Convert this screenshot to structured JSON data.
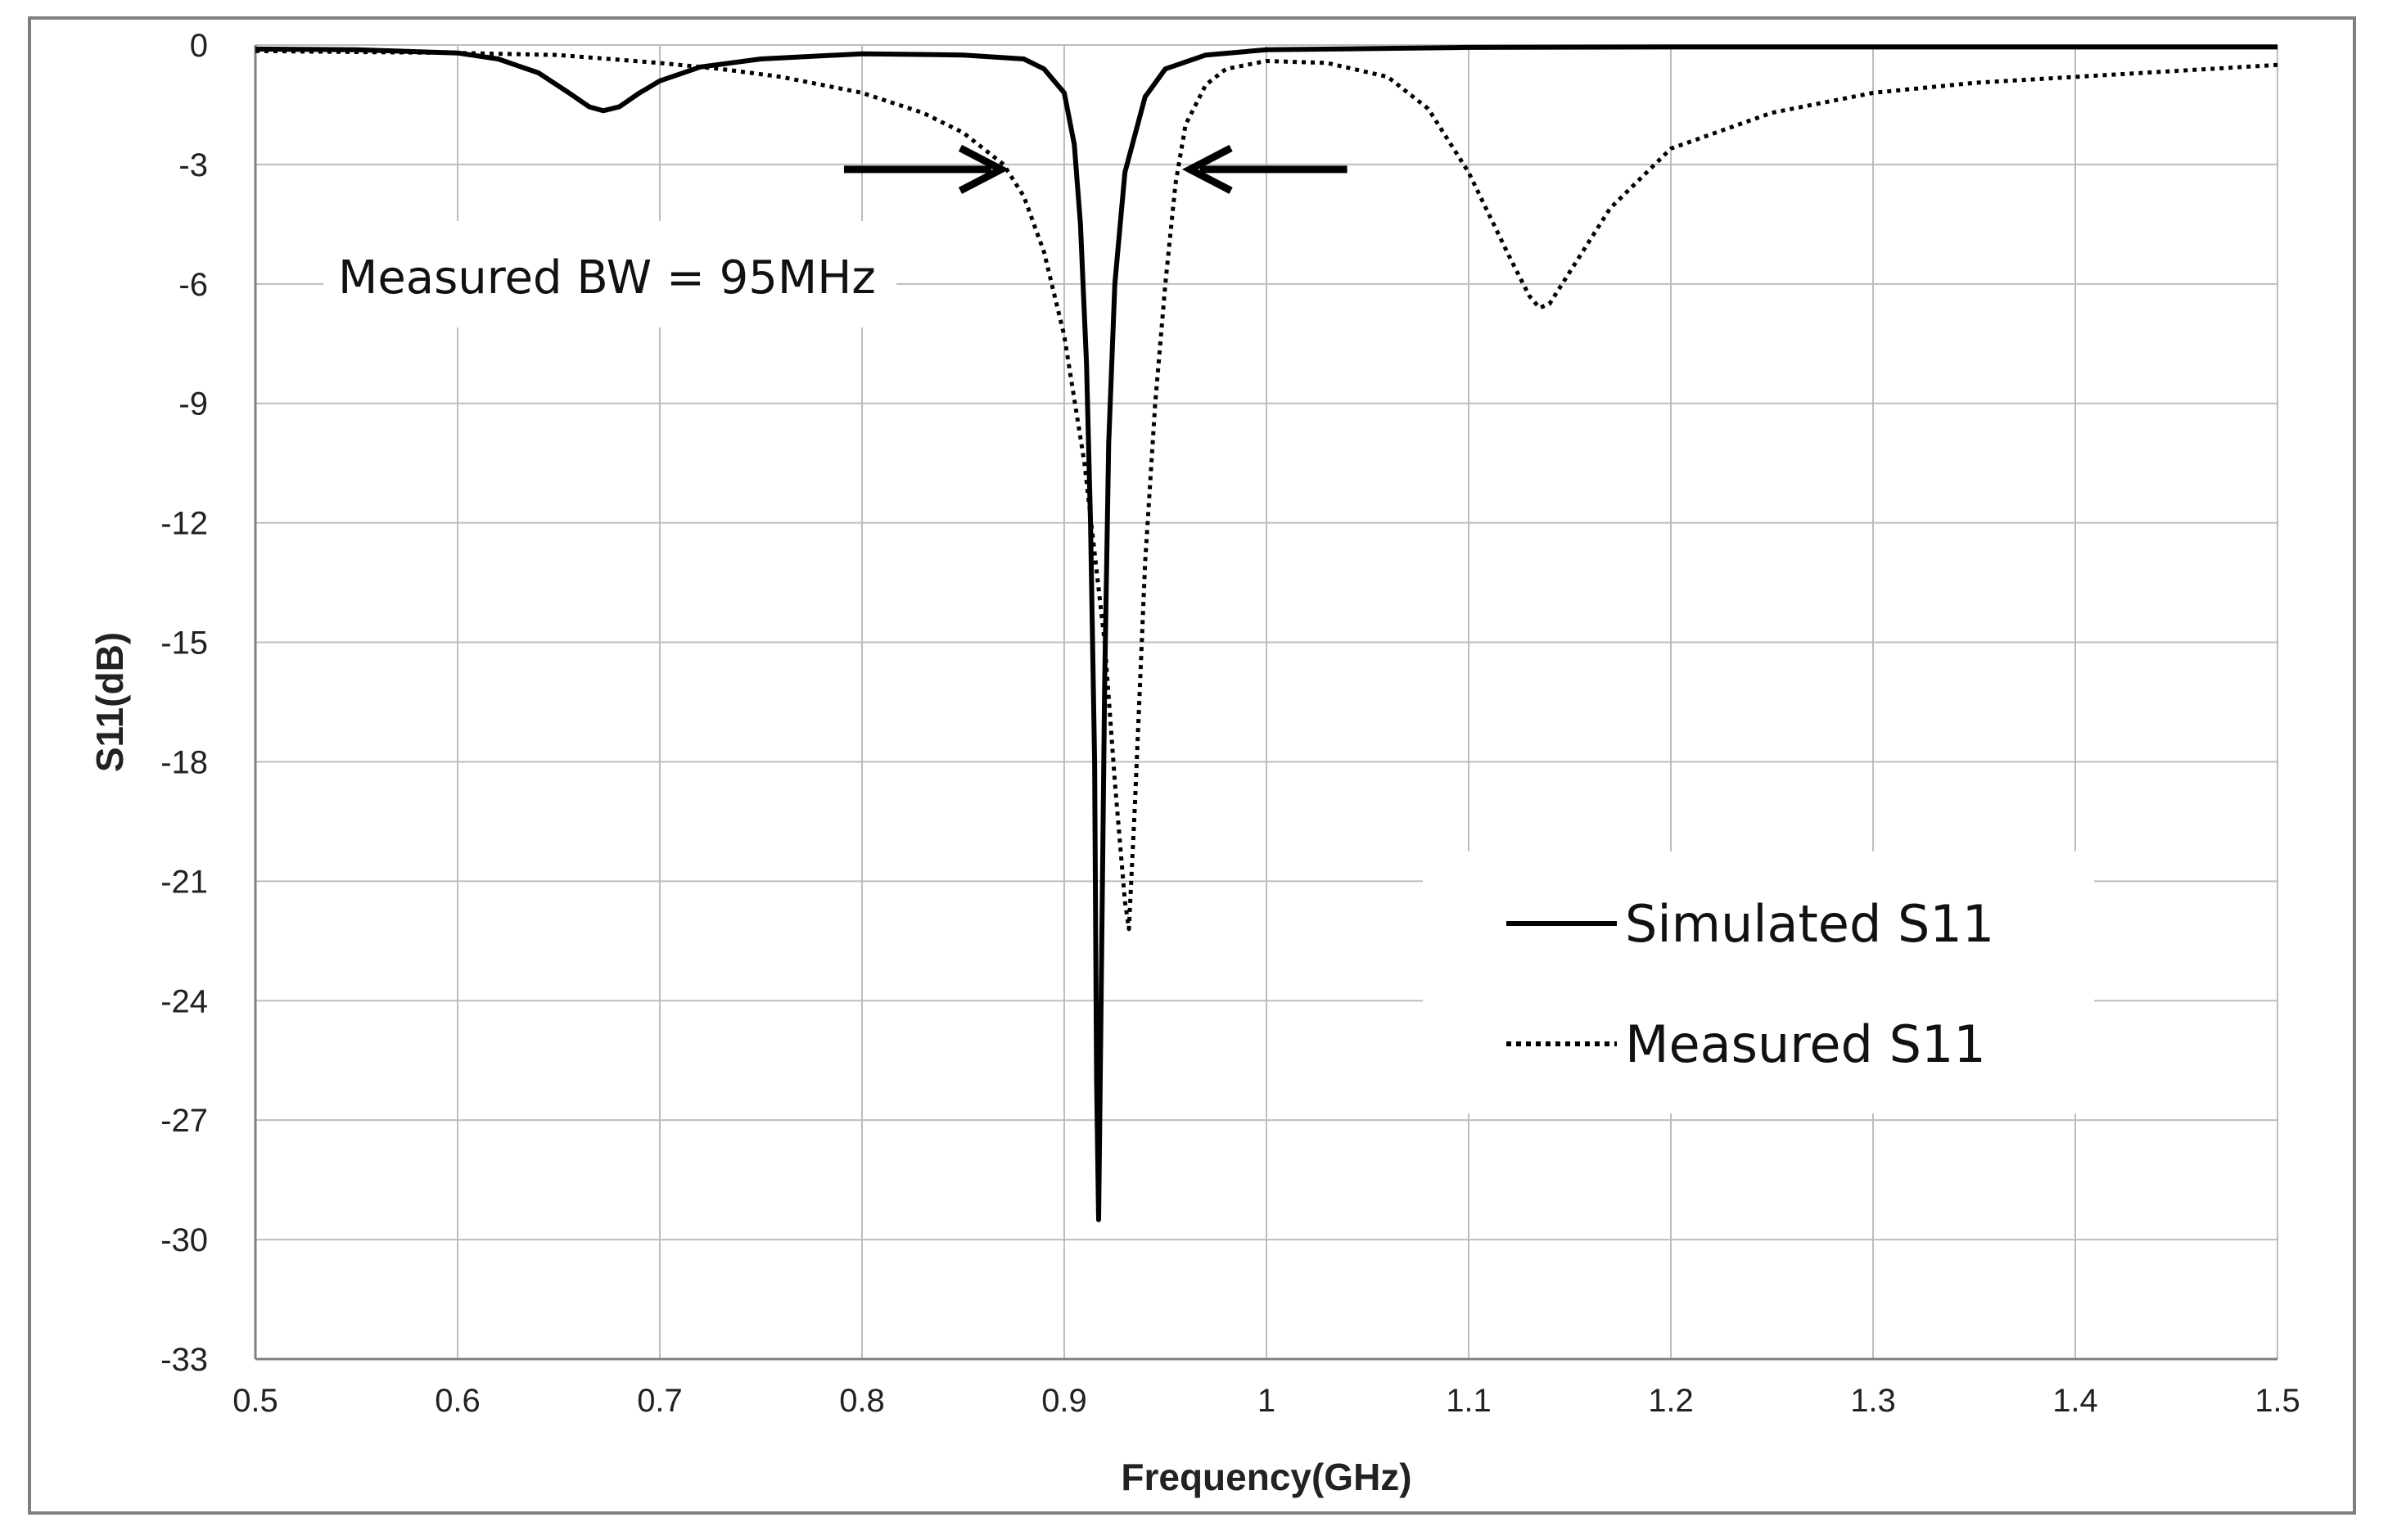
{
  "chart_data": {
    "type": "line",
    "title": "",
    "xlabel": "Frequency(GHz)",
    "ylabel": "S11(dB)",
    "xlim": [
      0.5,
      1.5
    ],
    "ylim": [
      -33,
      0
    ],
    "xticks": [
      0.5,
      0.6,
      0.7,
      0.8,
      0.9,
      1.0,
      1.1,
      1.2,
      1.3,
      1.4,
      1.5
    ],
    "xtick_labels": [
      "0.5",
      "0.6",
      "0.7",
      "0.8",
      "0.9",
      "1",
      "1.1",
      "1.2",
      "1.3",
      "1.4",
      "1.5"
    ],
    "yticks": [
      0,
      -3,
      -6,
      -9,
      -12,
      -15,
      -18,
      -21,
      -24,
      -27,
      -30,
      -33
    ],
    "ytick_labels": [
      "0",
      "-3",
      "-6",
      "-9",
      "-12",
      "-15",
      "-18",
      "-21",
      "-24",
      "-27",
      "-30",
      "-33"
    ],
    "grid": true,
    "legend_position": "bottom-right",
    "annotation": "Measured BW = 95MHz",
    "bandwidth_markers": {
      "left_ghz": 0.868,
      "right_ghz": 0.963,
      "level_db": -3
    },
    "series": [
      {
        "name": "Simulated S11",
        "style": "solid",
        "color": "#000000",
        "x": [
          0.5,
          0.55,
          0.6,
          0.62,
          0.64,
          0.655,
          0.665,
          0.672,
          0.68,
          0.69,
          0.7,
          0.72,
          0.75,
          0.8,
          0.85,
          0.88,
          0.89,
          0.9,
          0.905,
          0.908,
          0.911,
          0.913,
          0.915,
          0.916,
          0.917,
          0.918,
          0.92,
          0.922,
          0.925,
          0.93,
          0.94,
          0.95,
          0.97,
          1.0,
          1.1,
          1.2,
          1.3,
          1.4,
          1.5
        ],
        "y": [
          -0.1,
          -0.12,
          -0.2,
          -0.35,
          -0.7,
          -1.2,
          -1.55,
          -1.65,
          -1.55,
          -1.2,
          -0.9,
          -0.55,
          -0.35,
          -0.22,
          -0.25,
          -0.35,
          -0.6,
          -1.2,
          -2.5,
          -4.5,
          -8,
          -12,
          -18,
          -26,
          -29.5,
          -25,
          -16,
          -10,
          -6,
          -3.2,
          -1.3,
          -0.6,
          -0.25,
          -0.12,
          -0.06,
          -0.05,
          -0.05,
          -0.05,
          -0.05
        ]
      },
      {
        "name": "Measured S11",
        "style": "dotted",
        "color": "#000000",
        "x": [
          0.5,
          0.6,
          0.65,
          0.7,
          0.73,
          0.76,
          0.8,
          0.83,
          0.85,
          0.87,
          0.88,
          0.89,
          0.9,
          0.91,
          0.92,
          0.925,
          0.93,
          0.932,
          0.935,
          0.94,
          0.945,
          0.95,
          0.955,
          0.96,
          0.97,
          0.98,
          1.0,
          1.03,
          1.06,
          1.08,
          1.1,
          1.12,
          1.13,
          1.135,
          1.14,
          1.15,
          1.17,
          1.2,
          1.25,
          1.3,
          1.35,
          1.4,
          1.45,
          1.5
        ],
        "y": [
          -0.15,
          -0.2,
          -0.25,
          -0.45,
          -0.6,
          -0.8,
          -1.2,
          -1.7,
          -2.2,
          -3.0,
          -3.8,
          -5.2,
          -7.3,
          -10.5,
          -15,
          -18.5,
          -21.5,
          -22.2,
          -19,
          -13,
          -9,
          -6,
          -3.5,
          -2.0,
          -1.0,
          -0.6,
          -0.4,
          -0.45,
          -0.8,
          -1.6,
          -3.2,
          -5.3,
          -6.3,
          -6.6,
          -6.5,
          -5.7,
          -4.1,
          -2.6,
          -1.7,
          -1.2,
          -0.95,
          -0.8,
          -0.65,
          -0.5
        ]
      }
    ]
  }
}
